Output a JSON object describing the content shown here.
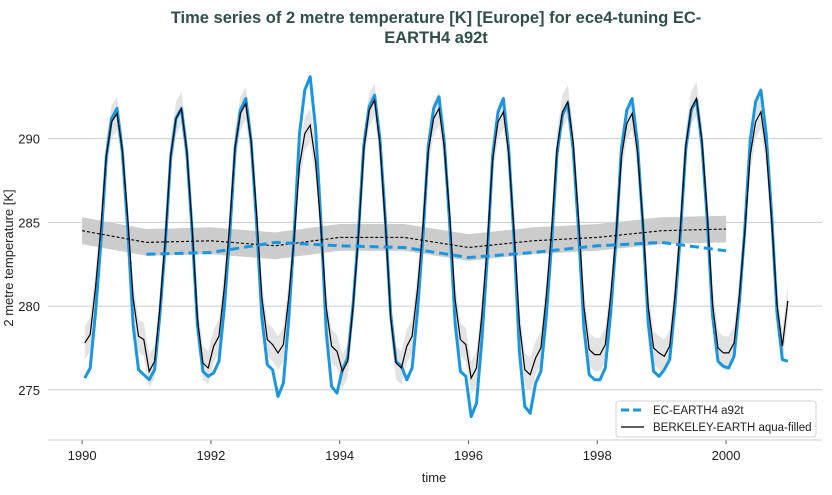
{
  "chart_data": {
    "type": "line",
    "title_lines": [
      "Time series of 2 metre temperature [K] [Europe] for ece4-tuning EC-",
      "EARTH4 a92t"
    ],
    "xlabel": "time",
    "ylabel": "2 metre temperature [K]",
    "xlim": [
      1989.47,
      2001.49
    ],
    "ylim": [
      272.0,
      294.1
    ],
    "xticks": [
      1990,
      1992,
      1994,
      1996,
      1998,
      2000
    ],
    "yticks": [
      275,
      280,
      285,
      290
    ],
    "grid": "horizontal",
    "legend_placement": "lower-right",
    "colors": {
      "model": "#1a96e0",
      "obs": "#000000",
      "band": "#cccccc",
      "grid": "#cccccc",
      "title": "#2f4f4f"
    },
    "series": [
      {
        "name": "EC-EARTH4 a92t",
        "style": "solid-thick",
        "start_year": 1990,
        "monthly": [
          275.7,
          276.3,
          279.6,
          283.8,
          288.9,
          291.2,
          291.8,
          289.2,
          284.6,
          278.9,
          276.2,
          275.9,
          275.6,
          276.2,
          279.5,
          283.7,
          288.9,
          291.2,
          291.8,
          289.2,
          284.5,
          278.8,
          276.1,
          275.8,
          276.0,
          276.7,
          279.9,
          284.2,
          289.4,
          291.7,
          292.4,
          289.8,
          285.0,
          279.3,
          276.5,
          276.2,
          274.6,
          275.4,
          279.2,
          284.2,
          290.3,
          292.9,
          293.7,
          290.6,
          285.1,
          278.4,
          275.2,
          274.8,
          276.2,
          276.9,
          280.1,
          284.4,
          289.6,
          291.9,
          292.6,
          290.0,
          285.2,
          279.5,
          276.7,
          276.4,
          275.6,
          276.3,
          279.7,
          284.1,
          289.5,
          291.8,
          292.5,
          289.8,
          284.9,
          279.0,
          276.1,
          275.8,
          273.4,
          274.2,
          278.0,
          282.9,
          289.0,
          291.6,
          292.4,
          289.4,
          283.9,
          277.2,
          274.0,
          273.6,
          275.4,
          276.1,
          279.4,
          283.8,
          289.1,
          291.4,
          292.1,
          289.4,
          284.6,
          278.7,
          275.9,
          275.6,
          275.6,
          276.3,
          279.6,
          284.0,
          289.4,
          291.7,
          292.4,
          289.7,
          284.8,
          279.0,
          276.1,
          275.8,
          276.2,
          276.8,
          280.1,
          284.3,
          289.4,
          291.7,
          292.3,
          289.7,
          285.1,
          279.4,
          276.7,
          276.4,
          276.3,
          277.0,
          280.3,
          284.6,
          289.9,
          292.2,
          292.9,
          290.2,
          285.4,
          279.6,
          276.8,
          276.7
        ],
        "running_mean": {
          "x": [
            1991,
            1992,
            1993,
            1994,
            1995,
            1996,
            1997,
            1998,
            1999,
            2000
          ],
          "y": [
            283.1,
            283.2,
            283.8,
            283.6,
            283.5,
            282.9,
            283.2,
            283.6,
            283.8,
            283.3
          ]
        }
      },
      {
        "name": "BERKELEY-EARTH aqua-filled",
        "style": "solid-thin",
        "start_year": 1990,
        "uncertainty": 1.0,
        "monthly": [
          277.8,
          278.3,
          281.1,
          284.7,
          289.0,
          291.0,
          291.5,
          289.3,
          285.3,
          280.5,
          278.2,
          278.0,
          276.1,
          276.7,
          279.9,
          284.0,
          289.0,
          291.2,
          291.8,
          289.3,
          284.7,
          279.2,
          276.6,
          276.3,
          277.6,
          278.2,
          281.1,
          284.9,
          289.5,
          291.5,
          292.1,
          289.8,
          285.6,
          280.5,
          278.0,
          277.7,
          277.2,
          277.7,
          280.5,
          284.0,
          288.4,
          290.3,
          290.8,
          288.6,
          284.7,
          279.9,
          277.6,
          277.3,
          276.1,
          276.7,
          280.0,
          284.2,
          289.4,
          291.7,
          292.3,
          289.7,
          285.0,
          279.3,
          276.6,
          276.3,
          277.6,
          278.2,
          281.0,
          284.7,
          289.2,
          291.2,
          291.8,
          289.5,
          285.4,
          280.4,
          278.0,
          277.7,
          275.7,
          276.3,
          279.5,
          283.7,
          288.7,
          291.0,
          291.6,
          289.1,
          284.4,
          278.9,
          276.2,
          275.9,
          276.9,
          277.5,
          280.6,
          284.6,
          289.4,
          291.6,
          292.2,
          289.8,
          285.3,
          280.0,
          277.4,
          277.1,
          277.1,
          277.7,
          280.6,
          284.3,
          288.9,
          290.9,
          291.5,
          289.2,
          285.0,
          280.0,
          277.5,
          277.2,
          277.0,
          277.6,
          280.7,
          284.7,
          289.6,
          291.8,
          292.4,
          289.9,
          285.5,
          280.1,
          277.5,
          277.2,
          277.2,
          277.8,
          280.7,
          284.4,
          289.0,
          291.0,
          291.6,
          289.3,
          285.1,
          280.1,
          277.6,
          280.3
        ],
        "running_mean": {
          "x": [
            1990,
            1991,
            1992,
            1993,
            1994,
            1995,
            1996,
            1997,
            1998,
            1999,
            2000
          ],
          "y": [
            284.5,
            283.8,
            283.9,
            283.6,
            284.1,
            284.1,
            283.5,
            283.9,
            284.1,
            284.5,
            284.6
          ],
          "uncertainty": 0.8
        }
      }
    ]
  }
}
